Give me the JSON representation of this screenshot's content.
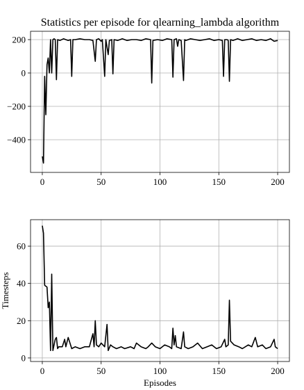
{
  "chart_data": [
    {
      "type": "line",
      "title": "Statistics per episode for qlearning_lambda algorithm",
      "x": [
        0,
        1,
        2,
        3,
        4,
        5,
        6,
        7,
        8,
        9,
        10,
        11,
        12,
        13,
        15,
        18,
        20,
        22,
        24,
        25,
        26,
        28,
        32,
        36,
        40,
        43,
        45,
        46,
        48,
        50,
        51,
        53,
        54,
        56,
        57,
        59,
        60,
        61,
        64,
        68,
        72,
        76,
        80,
        84,
        88,
        92,
        93,
        94,
        98,
        102,
        106,
        110,
        111,
        112,
        114,
        115,
        116,
        118,
        120,
        121,
        122,
        126,
        130,
        134,
        138,
        142,
        146,
        150,
        153,
        154,
        155,
        157,
        158,
        159,
        160,
        162,
        166,
        170,
        174,
        178,
        182,
        186,
        190,
        194,
        197,
        200
      ],
      "series": [
        {
          "color": "#000000",
          "values": [
            -500,
            -540,
            -20,
            -250,
            50,
            90,
            0,
            200,
            0,
            200,
            205,
            200,
            -40,
            200,
            195,
            205,
            200,
            195,
            200,
            -20,
            200,
            200,
            205,
            200,
            200,
            195,
            70,
            200,
            205,
            190,
            200,
            -20,
            200,
            110,
            195,
            200,
            -5,
            200,
            195,
            205,
            195,
            200,
            200,
            195,
            205,
            200,
            -60,
            195,
            200,
            195,
            205,
            200,
            -25,
            200,
            205,
            160,
            200,
            195,
            -45,
            200,
            195,
            205,
            200,
            195,
            200,
            205,
            195,
            200,
            195,
            -20,
            200,
            200,
            195,
            -50,
            200,
            195,
            205,
            195,
            200,
            205,
            195,
            200,
            195,
            205,
            190,
            195
          ]
        }
      ],
      "xlim": [
        -10,
        210
      ],
      "xticks": [
        0,
        50,
        100,
        150,
        200
      ],
      "ylim": [
        -596,
        250
      ],
      "yticks": [
        {
          "value": -400,
          "label": "−400"
        },
        {
          "value": -200,
          "label": "−200"
        },
        0,
        200
      ],
      "grid": true
    },
    {
      "type": "line",
      "x_label": "Episodes",
      "y_label": "Timesteps",
      "x": [
        0,
        1,
        2,
        4,
        5,
        6,
        7,
        8,
        9,
        11,
        12,
        13,
        14,
        17,
        19,
        20,
        22,
        25,
        28,
        32,
        36,
        40,
        43,
        44,
        45,
        46,
        48,
        50,
        53,
        55,
        56,
        58,
        60,
        63,
        67,
        70,
        75,
        78,
        80,
        84,
        88,
        90,
        93,
        96,
        100,
        104,
        108,
        110,
        111,
        112,
        113,
        114,
        118,
        120,
        121,
        124,
        128,
        132,
        136,
        140,
        144,
        148,
        152,
        155,
        156,
        158,
        159,
        160,
        163,
        167,
        170,
        175,
        178,
        181,
        183,
        187,
        190,
        194,
        197,
        198,
        200
      ],
      "series": [
        {
          "color": "#000000",
          "values": [
            71,
            67,
            39,
            38,
            27,
            30,
            4,
            45,
            4,
            10,
            11,
            5,
            6,
            6,
            10,
            6,
            11,
            5,
            6,
            5,
            6,
            6,
            13,
            6,
            20,
            7,
            6,
            8,
            6,
            18,
            4,
            7,
            6,
            5,
            6,
            5,
            6,
            5,
            8,
            6,
            5,
            6,
            8,
            6,
            5,
            7,
            6,
            5,
            16,
            7,
            12,
            6,
            5,
            14,
            6,
            5,
            6,
            8,
            5,
            6,
            7,
            5,
            6,
            10,
            6,
            7,
            31,
            9,
            7,
            6,
            5,
            7,
            6,
            11,
            6,
            7,
            5,
            6,
            10,
            6,
            5
          ]
        }
      ],
      "xlim": [
        -10,
        210
      ],
      "xticks": [
        0,
        50,
        100,
        150,
        200
      ],
      "ylim": [
        -1.9,
        74.2
      ],
      "yticks": [
        0,
        20,
        40,
        60
      ],
      "grid": true
    }
  ]
}
